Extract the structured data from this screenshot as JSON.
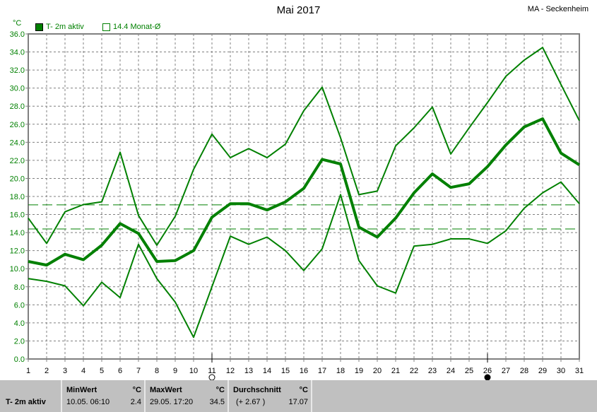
{
  "header": {
    "title": "Mai 2017",
    "station": "MA - Seckenheim",
    "unit": "°C"
  },
  "legend": {
    "series_label": "T- 2m aktiv",
    "mean_label": "14.4 Monat-Ø"
  },
  "colors": {
    "series": "#008000",
    "grid": "#808080",
    "panel": "#c0c0c0"
  },
  "chart_data": {
    "type": "line",
    "title": "Mai 2017",
    "ylabel": "°C",
    "ylim": [
      0,
      36
    ],
    "yticks": [
      "0.0",
      "2.0",
      "4.0",
      "6.0",
      "8.0",
      "10.0",
      "12.0",
      "14.0",
      "16.0",
      "18.0",
      "20.0",
      "22.0",
      "24.0",
      "26.0",
      "28.0",
      "30.0",
      "32.0",
      "34.0",
      "36.0"
    ],
    "x": [
      1,
      2,
      3,
      4,
      5,
      6,
      7,
      8,
      9,
      10,
      11,
      12,
      13,
      14,
      15,
      16,
      17,
      18,
      19,
      20,
      21,
      22,
      23,
      24,
      25,
      26,
      27,
      28,
      29,
      30,
      31
    ],
    "grid": true,
    "series": [
      {
        "role": "max",
        "values": [
          15.6,
          12.8,
          16.3,
          17.1,
          17.4,
          22.9,
          15.9,
          12.6,
          15.8,
          21.0,
          24.9,
          22.3,
          23.3,
          22.3,
          23.8,
          27.5,
          30.1,
          24.5,
          18.2,
          18.6,
          23.6,
          25.6,
          27.9,
          22.7,
          25.6,
          28.4,
          31.3,
          33.1,
          34.5,
          30.4,
          26.4
        ]
      },
      {
        "role": "mean",
        "values": [
          10.8,
          10.4,
          11.6,
          11.0,
          12.6,
          15.0,
          13.9,
          10.8,
          10.9,
          12.0,
          15.7,
          17.2,
          17.2,
          16.5,
          17.4,
          18.9,
          22.1,
          21.6,
          14.6,
          13.5,
          15.6,
          18.4,
          20.5,
          19.0,
          19.4,
          21.3,
          23.7,
          25.7,
          26.6,
          22.8,
          21.5
        ]
      },
      {
        "role": "min",
        "values": [
          8.9,
          8.6,
          8.1,
          5.9,
          8.5,
          6.8,
          12.7,
          8.9,
          6.3,
          2.4,
          8.0,
          13.6,
          12.7,
          13.5,
          12.0,
          9.8,
          12.2,
          18.2,
          10.9,
          8.1,
          7.3,
          12.5,
          12.7,
          13.3,
          13.3,
          12.8,
          14.2,
          16.7,
          18.4,
          19.6,
          17.2
        ]
      }
    ],
    "reference_lines": [
      {
        "value": 17.07
      },
      {
        "value": 14.4
      }
    ],
    "moon_phases": [
      {
        "day": 11,
        "phase": "full-moon"
      },
      {
        "day": 26,
        "phase": "new-moon"
      }
    ]
  },
  "panel": {
    "row_label": "T- 2m aktiv",
    "min": {
      "header": "MinWert",
      "unit": "°C",
      "time": "10.05.  06:10",
      "value": "2.4"
    },
    "max": {
      "header": "MaxWert",
      "unit": "°C",
      "time": "29.05.  17:20",
      "value": "34.5"
    },
    "avg": {
      "header": "Durchschnitt",
      "unit": "°C",
      "delta": "(+ 2.67 )",
      "value": "17.07"
    }
  }
}
